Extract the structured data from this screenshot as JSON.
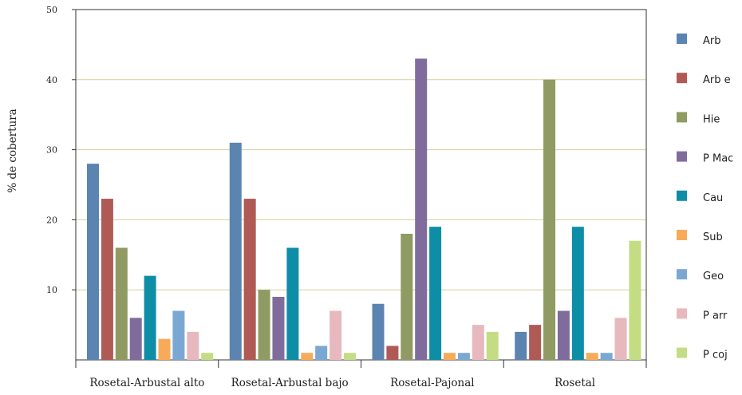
{
  "chart_data": {
    "type": "bar",
    "title": "",
    "xlabel": "",
    "ylabel": "% de cobertura",
    "ylim": [
      0,
      50
    ],
    "yticks": [
      10,
      20,
      30,
      40,
      50
    ],
    "grid": true,
    "legend_position": "right",
    "categories": [
      "Rosetal-Arbustal alto",
      "Rosetal-Arbustal bajo",
      "Rosetal-Pajonal",
      "Rosetal"
    ],
    "series": [
      {
        "name": "Arb",
        "color": "#5b84b1",
        "values": [
          28,
          31,
          8,
          4
        ]
      },
      {
        "name": "Arb e",
        "color": "#b05a55",
        "values": [
          23,
          23,
          2,
          5
        ]
      },
      {
        "name": "Hie",
        "color": "#8f9b62",
        "values": [
          16,
          10,
          18,
          40
        ]
      },
      {
        "name": "P Mac",
        "color": "#806c9c",
        "values": [
          6,
          9,
          43,
          7
        ]
      },
      {
        "name": "Cau",
        "color": "#0e8ea6",
        "values": [
          12,
          16,
          19,
          19
        ]
      },
      {
        "name": "Sub",
        "color": "#f7ab59",
        "values": [
          3,
          1,
          1,
          1
        ]
      },
      {
        "name": "Geo",
        "color": "#7ba8d2",
        "values": [
          7,
          2,
          1,
          1
        ]
      },
      {
        "name": "P arr",
        "color": "#e7b9bf",
        "values": [
          4,
          7,
          5,
          6
        ]
      },
      {
        "name": "P coj",
        "color": "#c4dc84",
        "values": [
          1,
          1,
          4,
          17
        ]
      }
    ]
  }
}
